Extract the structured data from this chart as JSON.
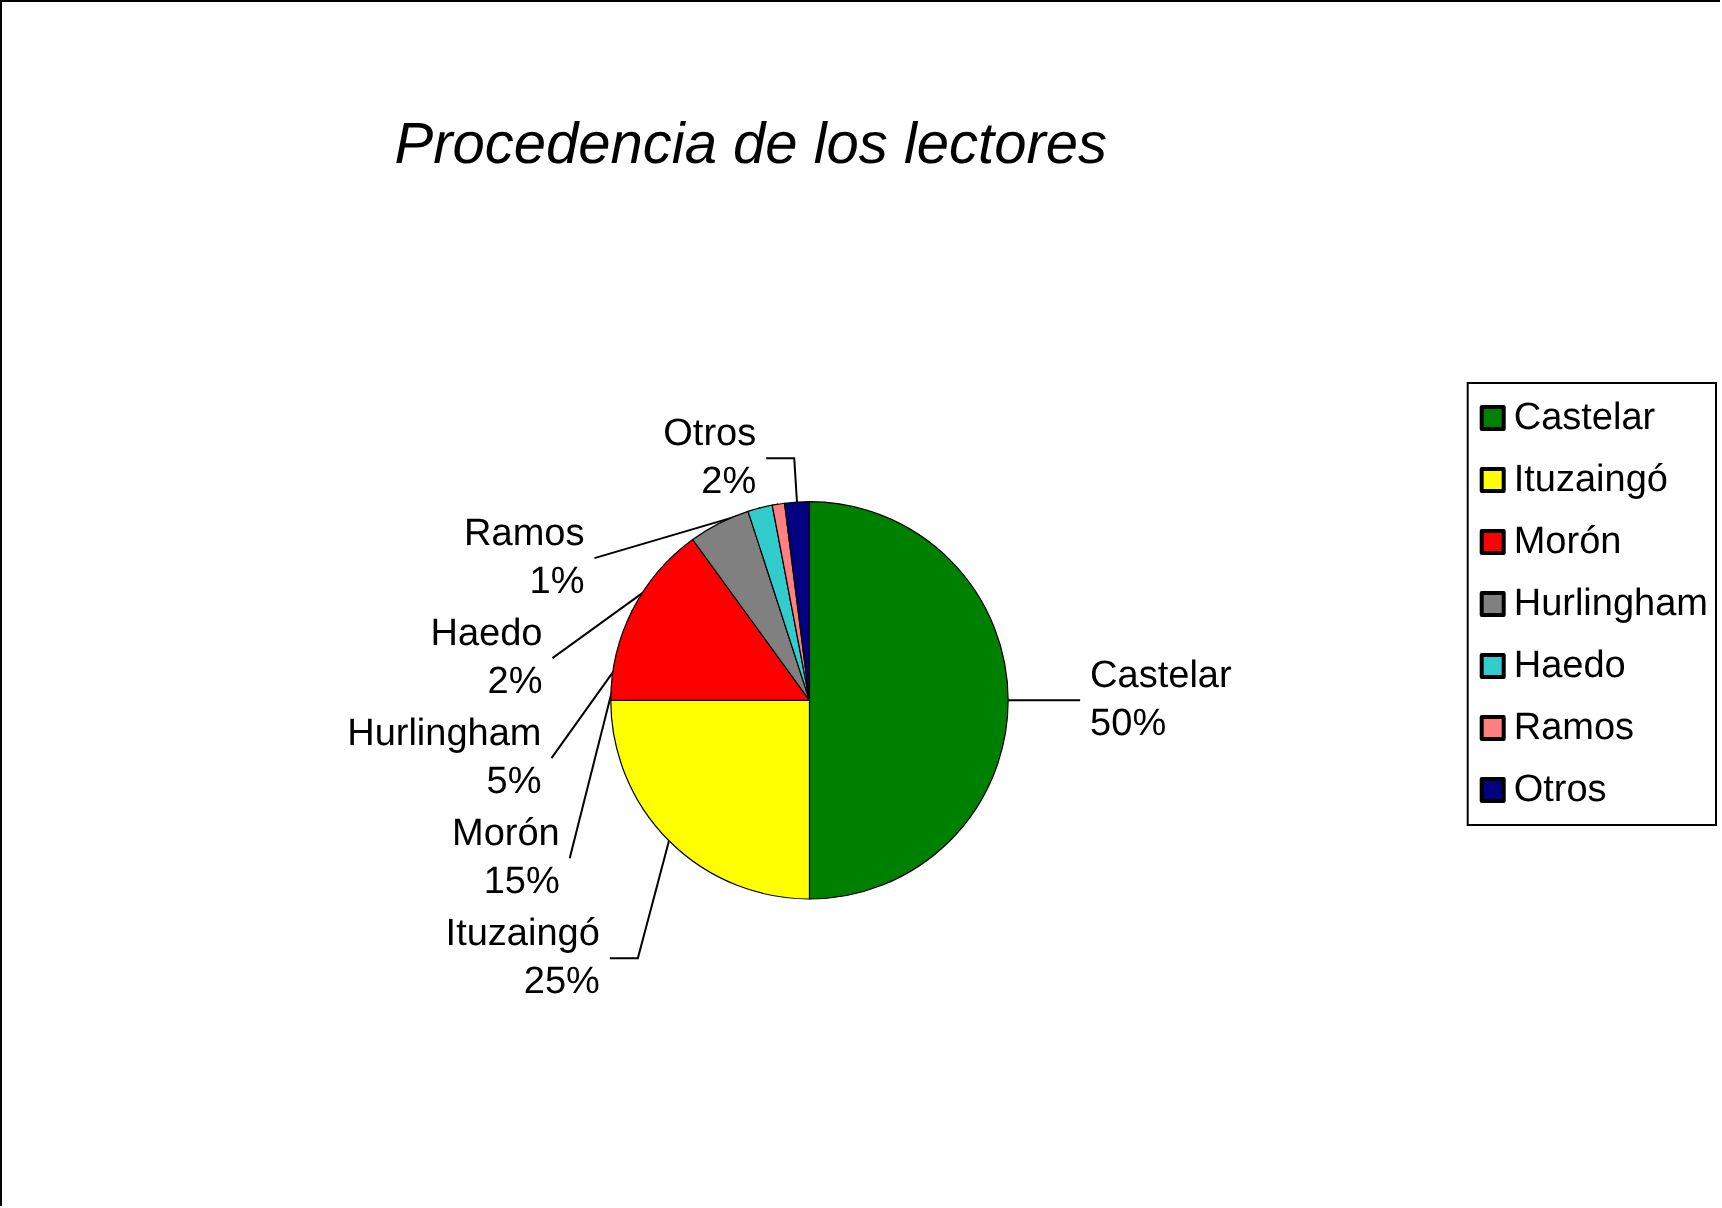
{
  "chart_data": {
    "type": "pie",
    "title": "Procedencia de los lectores",
    "categories": [
      "Castelar",
      "Ituzaingó",
      "Morón",
      "Hurlingham",
      "Haedo",
      "Ramos",
      "Otros"
    ],
    "values": [
      50,
      25,
      15,
      5,
      2,
      1,
      2
    ],
    "value_labels": [
      "50%",
      "25%",
      "15%",
      "5%",
      "2%",
      "1%",
      "2%"
    ],
    "colors": [
      "#008000",
      "#ffff00",
      "#ff0000",
      "#808080",
      "#33cccc",
      "#ff8080",
      "#000080"
    ],
    "legend": "right"
  }
}
